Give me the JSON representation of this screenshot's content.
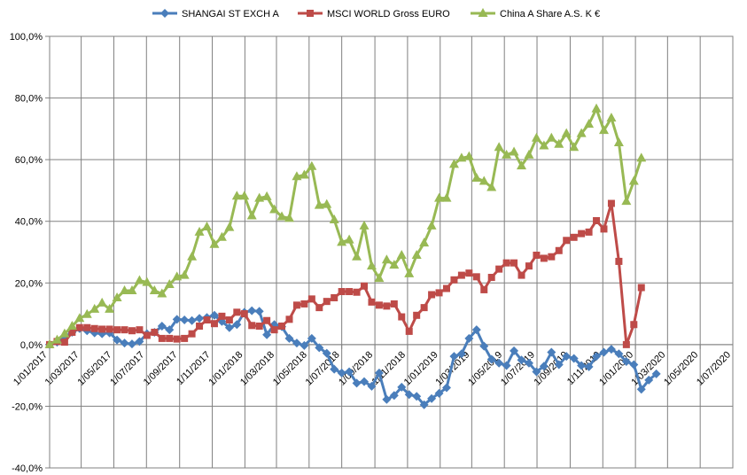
{
  "chart_data": {
    "type": "line",
    "title": "",
    "xlabel": "",
    "ylabel": "",
    "ylim": [
      -40,
      100
    ],
    "yticks": [
      -40,
      -20,
      0,
      20,
      40,
      60,
      80,
      100
    ],
    "ytick_labels": [
      "-40,0%",
      "-20,0%",
      "0,0%",
      "20,0%",
      "40,0%",
      "60,0%",
      "80,0%",
      "100,0%"
    ],
    "xlim": [
      "2017-01-01",
      "2020-07-01"
    ],
    "xticks": [
      "2017-01-01",
      "2017-03-01",
      "2017-05-01",
      "2017-07-01",
      "2017-09-01",
      "2017-11-01",
      "2018-01-01",
      "2018-03-01",
      "2018-05-01",
      "2018-07-01",
      "2018-09-01",
      "2018-11-01",
      "2019-01-01",
      "2019-03-01",
      "2019-05-01",
      "2019-07-01",
      "2019-09-01",
      "2019-11-01",
      "2020-01-01",
      "2020-03-01",
      "2020-05-01",
      "2020-07-01"
    ],
    "xtick_labels": [
      "1/01/2017",
      "1/03/2017",
      "1/05/2017",
      "1/07/2017",
      "1/09/2017",
      "1/11/2017",
      "1/01/2018",
      "1/03/2018",
      "1/05/2018",
      "1/07/2018",
      "1/09/2018",
      "1/11/2018",
      "1/01/2019",
      "1/03/2019",
      "1/05/2019",
      "1/07/2019",
      "1/09/2019",
      "1/11/2019",
      "1/01/2020",
      "1/03/2020",
      "1/05/2020",
      "1/07/2020"
    ],
    "grid": true,
    "legend_position": "top",
    "series": [
      {
        "name": "SHANGAI ST EXCH A",
        "color": "#4a7ebb",
        "marker": "diamond",
        "points": [
          [
            "2017-01-01",
            0.0
          ],
          [
            "2017-01-15",
            0.8
          ],
          [
            "2017-01-29",
            2.5
          ],
          [
            "2017-02-12",
            4.0
          ],
          [
            "2017-02-26",
            5.2
          ],
          [
            "2017-03-12",
            4.5
          ],
          [
            "2017-03-26",
            3.8
          ],
          [
            "2017-04-09",
            3.5
          ],
          [
            "2017-04-23",
            3.8
          ],
          [
            "2017-05-07",
            1.5
          ],
          [
            "2017-05-21",
            0.5
          ],
          [
            "2017-06-04",
            0.2
          ],
          [
            "2017-06-18",
            1.0
          ],
          [
            "2017-07-02",
            3.5
          ],
          [
            "2017-07-16",
            4.0
          ],
          [
            "2017-07-30",
            6.0
          ],
          [
            "2017-08-13",
            4.8
          ],
          [
            "2017-08-27",
            8.2
          ],
          [
            "2017-09-10",
            8.0
          ],
          [
            "2017-09-24",
            7.8
          ],
          [
            "2017-10-08",
            8.5
          ],
          [
            "2017-10-22",
            8.8
          ],
          [
            "2017-11-05",
            9.5
          ],
          [
            "2017-11-19",
            7.5
          ],
          [
            "2017-12-03",
            5.5
          ],
          [
            "2017-12-17",
            6.5
          ],
          [
            "2017-12-31",
            10.5
          ],
          [
            "2018-01-14",
            11.0
          ],
          [
            "2018-01-28",
            10.8
          ],
          [
            "2018-02-11",
            3.2
          ],
          [
            "2018-02-25",
            6.5
          ],
          [
            "2018-03-11",
            5.8
          ],
          [
            "2018-03-25",
            2.0
          ],
          [
            "2018-04-08",
            0.5
          ],
          [
            "2018-04-22",
            -0.3
          ],
          [
            "2018-05-06",
            2.0
          ],
          [
            "2018-05-20",
            -1.0
          ],
          [
            "2018-06-03",
            -2.8
          ],
          [
            "2018-06-17",
            -8.0
          ],
          [
            "2018-07-01",
            -9.2
          ],
          [
            "2018-07-15",
            -8.8
          ],
          [
            "2018-07-29",
            -12.5
          ],
          [
            "2018-08-12",
            -12.0
          ],
          [
            "2018-08-26",
            -13.5
          ],
          [
            "2018-09-09",
            -9.2
          ],
          [
            "2018-09-23",
            -17.8
          ],
          [
            "2018-10-07",
            -16.5
          ],
          [
            "2018-10-21",
            -13.8
          ],
          [
            "2018-11-04",
            -16.2
          ],
          [
            "2018-11-18",
            -16.8
          ],
          [
            "2018-12-02",
            -19.5
          ],
          [
            "2018-12-16",
            -17.5
          ],
          [
            "2018-12-30",
            -15.8
          ],
          [
            "2019-01-13",
            -14.0
          ],
          [
            "2019-01-27",
            -3.8
          ],
          [
            "2019-02-10",
            -3.0
          ],
          [
            "2019-02-24",
            2.0
          ],
          [
            "2019-03-10",
            4.8
          ],
          [
            "2019-03-24",
            -0.5
          ],
          [
            "2019-04-07",
            -4.8
          ],
          [
            "2019-04-21",
            -6.0
          ],
          [
            "2019-05-05",
            -6.8
          ],
          [
            "2019-05-19",
            -2.0
          ],
          [
            "2019-06-02",
            -5.0
          ],
          [
            "2019-06-16",
            -6.0
          ],
          [
            "2019-06-30",
            -8.8
          ],
          [
            "2019-07-14",
            -7.0
          ],
          [
            "2019-07-28",
            -2.5
          ],
          [
            "2019-08-11",
            -6.5
          ],
          [
            "2019-08-25",
            -3.8
          ],
          [
            "2019-09-08",
            -4.5
          ],
          [
            "2019-09-22",
            -6.8
          ],
          [
            "2019-10-06",
            -7.2
          ],
          [
            "2019-10-20",
            -3.8
          ],
          [
            "2019-11-03",
            -2.5
          ],
          [
            "2019-11-17",
            -1.5
          ],
          [
            "2019-12-01",
            -3.0
          ],
          [
            "2019-12-15",
            -5.5
          ],
          [
            "2019-12-29",
            -6.5
          ],
          [
            "2020-01-12",
            -14.5
          ],
          [
            "2020-01-26",
            -11.5
          ],
          [
            "2020-02-09",
            -9.5
          ]
        ]
      },
      {
        "name": "MSCI WORLD Gross EURO",
        "color": "#be4b48",
        "marker": "square",
        "points": [
          [
            "2017-01-01",
            0.0
          ],
          [
            "2017-01-15",
            1.0
          ],
          [
            "2017-01-29",
            0.8
          ],
          [
            "2017-02-12",
            4.0
          ],
          [
            "2017-02-26",
            5.5
          ],
          [
            "2017-03-12",
            5.5
          ],
          [
            "2017-03-26",
            5.2
          ],
          [
            "2017-04-09",
            5.0
          ],
          [
            "2017-04-23",
            5.0
          ],
          [
            "2017-05-07",
            4.8
          ],
          [
            "2017-05-21",
            4.8
          ],
          [
            "2017-06-04",
            4.5
          ],
          [
            "2017-06-18",
            4.8
          ],
          [
            "2017-07-02",
            3.0
          ],
          [
            "2017-07-16",
            4.0
          ],
          [
            "2017-07-30",
            2.0
          ],
          [
            "2017-08-13",
            2.0
          ],
          [
            "2017-08-27",
            1.8
          ],
          [
            "2017-09-10",
            2.0
          ],
          [
            "2017-09-24",
            3.5
          ],
          [
            "2017-10-08",
            6.0
          ],
          [
            "2017-10-22",
            8.0
          ],
          [
            "2017-11-05",
            6.8
          ],
          [
            "2017-11-19",
            9.2
          ],
          [
            "2017-12-03",
            8.0
          ],
          [
            "2017-12-17",
            10.5
          ],
          [
            "2017-12-31",
            10.0
          ],
          [
            "2018-01-14",
            6.2
          ],
          [
            "2018-01-28",
            6.0
          ],
          [
            "2018-02-11",
            7.8
          ],
          [
            "2018-02-25",
            4.8
          ],
          [
            "2018-03-11",
            6.0
          ],
          [
            "2018-03-25",
            8.2
          ],
          [
            "2018-04-08",
            12.8
          ],
          [
            "2018-04-22",
            13.2
          ],
          [
            "2018-05-06",
            14.8
          ],
          [
            "2018-05-20",
            12.0
          ],
          [
            "2018-06-03",
            14.0
          ],
          [
            "2018-06-17",
            15.2
          ],
          [
            "2018-07-01",
            17.2
          ],
          [
            "2018-07-15",
            17.2
          ],
          [
            "2018-07-29",
            17.0
          ],
          [
            "2018-08-12",
            19.0
          ],
          [
            "2018-08-26",
            13.8
          ],
          [
            "2018-09-09",
            12.8
          ],
          [
            "2018-09-23",
            12.5
          ],
          [
            "2018-10-07",
            13.2
          ],
          [
            "2018-10-21",
            9.0
          ],
          [
            "2018-11-04",
            4.3
          ],
          [
            "2018-11-18",
            9.5
          ],
          [
            "2018-12-02",
            12.0
          ],
          [
            "2018-12-16",
            16.2
          ],
          [
            "2018-12-30",
            16.8
          ],
          [
            "2019-01-13",
            18.2
          ],
          [
            "2019-01-27",
            21.0
          ],
          [
            "2019-02-10",
            22.5
          ],
          [
            "2019-02-24",
            23.2
          ],
          [
            "2019-03-10",
            22.0
          ],
          [
            "2019-03-24",
            17.8
          ],
          [
            "2019-04-07",
            21.8
          ],
          [
            "2019-04-21",
            24.5
          ],
          [
            "2019-05-05",
            26.5
          ],
          [
            "2019-05-19",
            26.5
          ],
          [
            "2019-06-02",
            22.5
          ],
          [
            "2019-06-16",
            25.5
          ],
          [
            "2019-06-30",
            29.0
          ],
          [
            "2019-07-14",
            28.0
          ],
          [
            "2019-07-28",
            28.5
          ],
          [
            "2019-08-11",
            30.5
          ],
          [
            "2019-08-25",
            33.8
          ],
          [
            "2019-09-08",
            34.8
          ],
          [
            "2019-09-22",
            36.0
          ],
          [
            "2019-10-06",
            36.5
          ],
          [
            "2019-10-20",
            40.2
          ],
          [
            "2019-11-03",
            37.5
          ],
          [
            "2019-11-17",
            45.8
          ],
          [
            "2019-12-01",
            27.0
          ],
          [
            "2019-12-15",
            0.0
          ],
          [
            "2019-12-29",
            6.5
          ],
          [
            "2020-01-12",
            18.5
          ]
        ]
      },
      {
        "name": "China A Share A.S.  K €",
        "color": "#98b954",
        "marker": "triangle",
        "points": [
          [
            "2017-01-01",
            0.0
          ],
          [
            "2017-01-15",
            1.5
          ],
          [
            "2017-01-29",
            3.5
          ],
          [
            "2017-02-12",
            6.0
          ],
          [
            "2017-02-26",
            8.5
          ],
          [
            "2017-03-12",
            9.8
          ],
          [
            "2017-03-26",
            11.5
          ],
          [
            "2017-04-09",
            13.5
          ],
          [
            "2017-04-23",
            11.5
          ],
          [
            "2017-05-07",
            15.2
          ],
          [
            "2017-05-21",
            17.5
          ],
          [
            "2017-06-04",
            17.5
          ],
          [
            "2017-06-18",
            20.8
          ],
          [
            "2017-07-02",
            20.2
          ],
          [
            "2017-07-16",
            17.5
          ],
          [
            "2017-07-30",
            16.5
          ],
          [
            "2017-08-13",
            19.5
          ],
          [
            "2017-08-27",
            22.0
          ],
          [
            "2017-09-10",
            22.5
          ],
          [
            "2017-09-24",
            28.5
          ],
          [
            "2017-10-08",
            36.5
          ],
          [
            "2017-10-22",
            38.2
          ],
          [
            "2017-11-05",
            32.5
          ],
          [
            "2017-11-19",
            34.8
          ],
          [
            "2017-12-03",
            38.0
          ],
          [
            "2017-12-17",
            48.2
          ],
          [
            "2017-12-31",
            48.2
          ],
          [
            "2018-01-14",
            41.8
          ],
          [
            "2018-01-28",
            47.5
          ],
          [
            "2018-02-11",
            48.0
          ],
          [
            "2018-02-25",
            43.8
          ],
          [
            "2018-03-11",
            41.5
          ],
          [
            "2018-03-25",
            41.0
          ],
          [
            "2018-04-08",
            54.5
          ],
          [
            "2018-04-22",
            55.0
          ],
          [
            "2018-05-06",
            57.8
          ],
          [
            "2018-05-20",
            45.2
          ],
          [
            "2018-06-03",
            45.5
          ],
          [
            "2018-06-17",
            40.5
          ],
          [
            "2018-07-01",
            33.2
          ],
          [
            "2018-07-15",
            34.0
          ],
          [
            "2018-07-29",
            28.5
          ],
          [
            "2018-08-12",
            38.5
          ],
          [
            "2018-08-26",
            25.5
          ],
          [
            "2018-09-09",
            21.5
          ],
          [
            "2018-09-23",
            27.5
          ],
          [
            "2018-10-07",
            25.8
          ],
          [
            "2018-10-21",
            29.0
          ],
          [
            "2018-11-04",
            23.0
          ],
          [
            "2018-11-18",
            29.0
          ],
          [
            "2018-12-02",
            33.0
          ],
          [
            "2018-12-16",
            38.5
          ],
          [
            "2018-12-30",
            47.5
          ],
          [
            "2019-01-13",
            47.5
          ],
          [
            "2019-01-27",
            58.5
          ],
          [
            "2019-02-10",
            60.5
          ],
          [
            "2019-02-24",
            61.0
          ],
          [
            "2019-03-10",
            54.0
          ],
          [
            "2019-03-24",
            53.0
          ],
          [
            "2019-04-07",
            51.0
          ],
          [
            "2019-04-21",
            64.0
          ],
          [
            "2019-05-05",
            61.5
          ],
          [
            "2019-05-19",
            62.5
          ],
          [
            "2019-06-02",
            58.0
          ],
          [
            "2019-06-16",
            61.5
          ],
          [
            "2019-06-30",
            67.0
          ],
          [
            "2019-07-14",
            64.5
          ],
          [
            "2019-07-28",
            67.0
          ],
          [
            "2019-08-11",
            65.0
          ],
          [
            "2019-08-25",
            68.5
          ],
          [
            "2019-09-08",
            64.0
          ],
          [
            "2019-09-22",
            68.5
          ],
          [
            "2019-10-06",
            71.5
          ],
          [
            "2019-10-20",
            76.5
          ],
          [
            "2019-11-03",
            69.5
          ],
          [
            "2019-11-17",
            73.5
          ],
          [
            "2019-12-01",
            65.5
          ],
          [
            "2019-12-15",
            46.5
          ],
          [
            "2019-12-29",
            53.0
          ],
          [
            "2020-01-12",
            60.5
          ]
        ]
      }
    ]
  }
}
